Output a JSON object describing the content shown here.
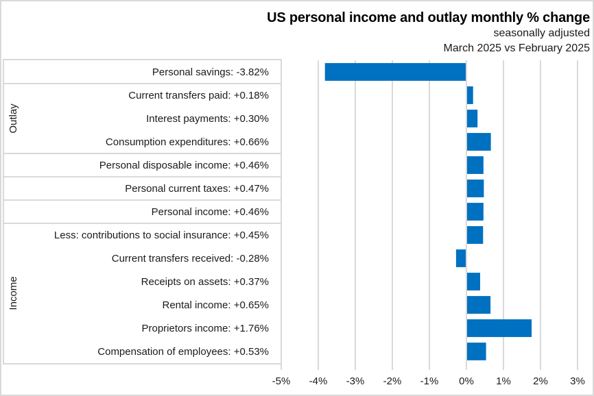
{
  "chart_data": {
    "type": "bar",
    "orientation": "horizontal",
    "title": "US personal income and outlay monthly % change",
    "subtitle_lines": [
      "seasonally adjusted",
      "March 2025 vs February 2025"
    ],
    "xlabel": "",
    "ylabel": "",
    "xlim": [
      -5,
      3
    ],
    "x_ticks": [
      -5,
      -4,
      -3,
      -2,
      -1,
      0,
      1,
      2,
      3
    ],
    "x_tick_labels": [
      "-5%",
      "-4%",
      "-3%",
      "-2%",
      "-1%",
      "0%",
      "1%",
      "2%",
      "3%"
    ],
    "grid": "vertical",
    "legend": "none",
    "bar_color": "#0070c0",
    "categories": [
      "Personal savings",
      "Current transfers paid",
      "Interest payments",
      "Consumption expenditures",
      "Personal disposable income",
      "Personal current taxes",
      "Personal income",
      "Less: contributions to social insurance",
      "Current transfers received",
      "Receipts on assets",
      "Rental income",
      "Proprietors income",
      "Compensation of employees"
    ],
    "category_labels": [
      "Personal savings:  -3.82%",
      "Current transfers paid:  +0.18%",
      "Interest payments:  +0.30%",
      "Consumption expenditures:  +0.66%",
      "Personal disposable income:  +0.46%",
      "Personal current taxes:  +0.47%",
      "Personal income:  +0.46%",
      "Less: contributions to social insurance:  +0.45%",
      "Current transfers received:  -0.28%",
      "Receipts on assets:  +0.37%",
      "Rental income:  +0.65%",
      "Proprietors income:  +1.76%",
      "Compensation of employees:  +0.53%"
    ],
    "values": [
      -3.82,
      0.18,
      0.3,
      0.66,
      0.46,
      0.47,
      0.46,
      0.45,
      -0.28,
      0.37,
      0.65,
      1.76,
      0.53
    ],
    "groups": [
      {
        "name": "Outlay",
        "from_index": 1,
        "to_index": 3
      },
      {
        "name": "Income",
        "from_index": 7,
        "to_index": 12
      }
    ],
    "separators_after_index": [
      0,
      3,
      4,
      5,
      6
    ]
  }
}
